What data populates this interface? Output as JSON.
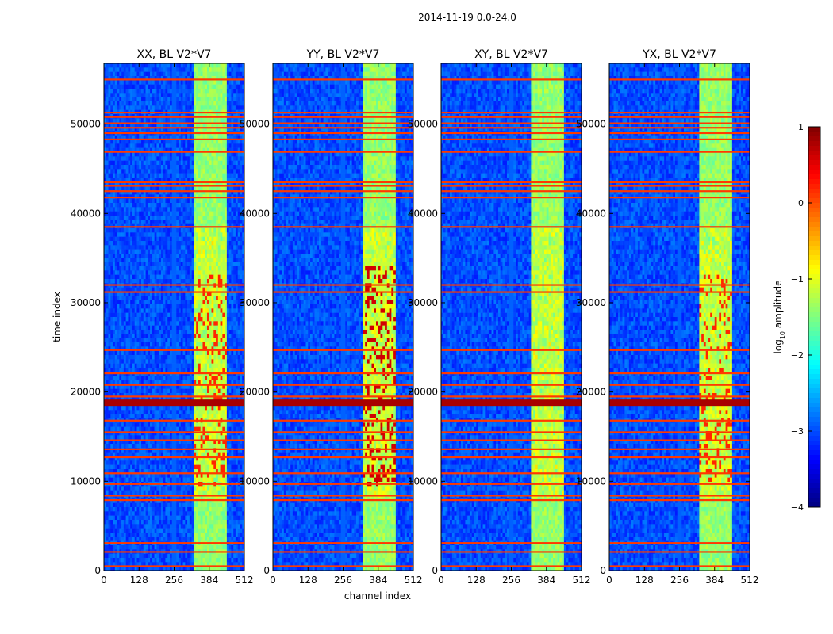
{
  "figure": {
    "suptitle": "2014-11-19 0.0-24.0",
    "xlabel": "channel index",
    "ylabel": "time index",
    "colorbar_label": "log",
    "colorbar_label_sub": "10",
    "colorbar_label_rest": " amplitude"
  },
  "chart_data": {
    "type": "heatmap",
    "colormap": "jet",
    "title": "2014-11-19 0.0-24.0",
    "xlabel": "channel index",
    "ylabel": "time index",
    "xlim": [
      0,
      512
    ],
    "ylim": [
      0,
      56800
    ],
    "x_ticks": [
      0,
      128,
      256,
      384,
      512
    ],
    "y_ticks": [
      0,
      10000,
      20000,
      30000,
      40000,
      50000
    ],
    "x_tick_labels": [
      "0",
      "128",
      "256",
      "384",
      "512"
    ],
    "y_tick_labels": [
      "0",
      "10000",
      "20000",
      "30000",
      "40000",
      "50000"
    ],
    "color_range": [
      -4,
      1
    ],
    "colorbar_ticks": [
      1,
      0,
      -1,
      -2,
      -3,
      -4
    ],
    "colorbar_tick_labels": [
      "1",
      "0",
      "−1",
      "−2",
      "−3",
      "−4"
    ],
    "colorbar_label": "log10 amplitude",
    "panels": [
      {
        "title": "XX, BL V2*V7",
        "pol": "XX"
      },
      {
        "title": "YY, BL V2*V7",
        "pol": "YY"
      },
      {
        "title": "XY, BL V2*V7",
        "pol": "XY"
      },
      {
        "title": "YX, BL V2*V7",
        "pol": "YX"
      }
    ],
    "flagged_rows": [
      500,
      2100,
      3100,
      7900,
      8400,
      9700,
      10900,
      12700,
      13600,
      14600,
      15500,
      16800,
      18700,
      19500,
      20800,
      22100,
      24700,
      31200,
      32000,
      38500,
      41800,
      42500,
      43100,
      43500,
      46900,
      48300,
      49000,
      49600,
      50100,
      50800,
      51300,
      55000
    ],
    "bright_band": {
      "channels": [
        330,
        450
      ],
      "log10_amplitude_range": [
        -1.5,
        -0.3
      ]
    },
    "strong_row_time": 18800,
    "strong_row_log10_amplitude": 0.8
  }
}
